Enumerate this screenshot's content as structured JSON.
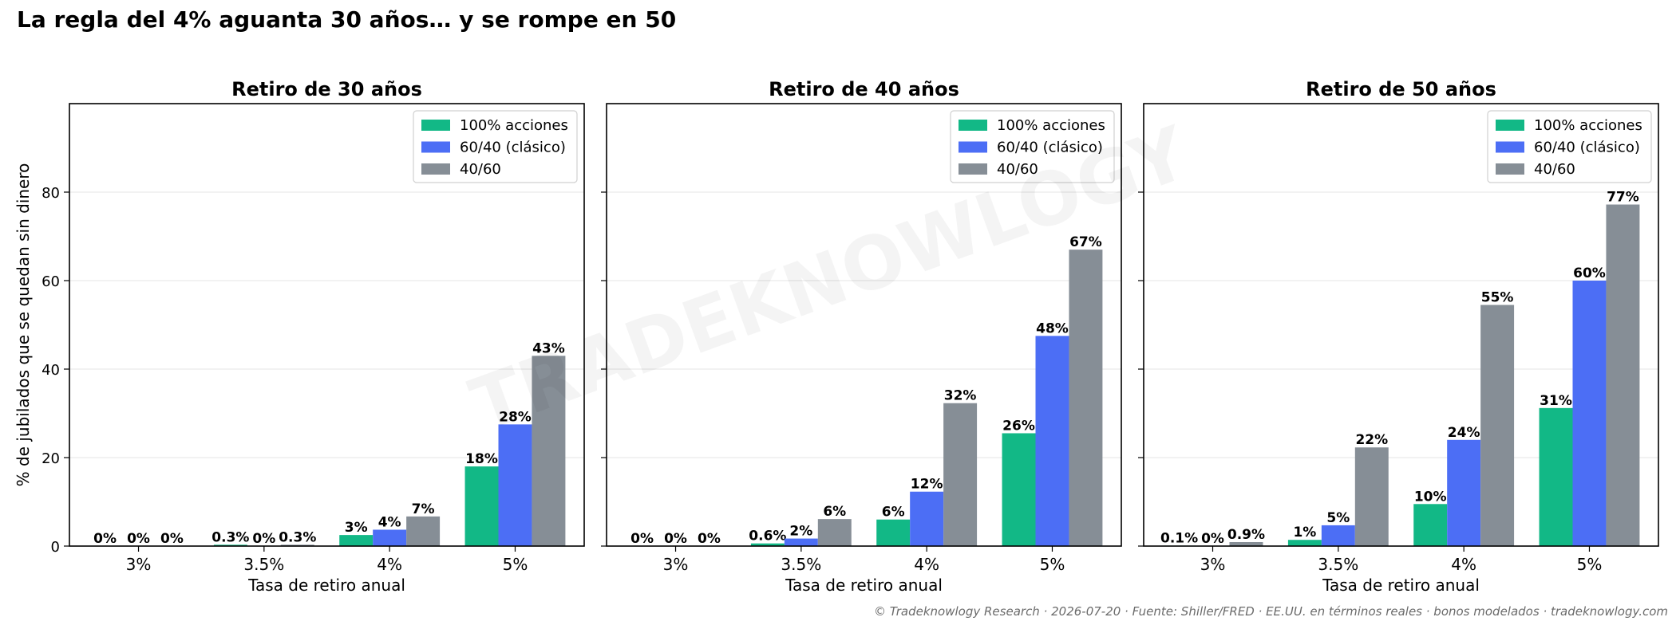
{
  "suptitle": "La regla del 4% aguanta 30 años… y se rompe en 50",
  "footer": "© Tradeknowlogy Research   ·   2026-07-20   ·   Fuente: Shiller/FRED · EE.UU. en términos reales · bonos modelados   ·   tradeknowlogy.com",
  "watermark": "TRADEKNOWLOGY",
  "colors": {
    "stocks": "#12b886",
    "classic": "#4c6ef5",
    "conservative": "#868e96",
    "grid": "#e9e9e9"
  },
  "chart_data": [
    {
      "type": "bar",
      "title": "Retiro de 30 años",
      "xlabel": "Tasa de retiro anual",
      "ylabel": "% de jubilados que se quedan sin dinero",
      "ylim": [
        0,
        100
      ],
      "yticks": [
        0,
        20,
        40,
        60,
        80
      ],
      "grid": "y",
      "legend": "top-right",
      "categories": [
        "3%",
        "3.5%",
        "4%",
        "5%"
      ],
      "series": [
        {
          "name": "100% acciones",
          "values": [
            0,
            0.3,
            2.5,
            18
          ],
          "labels": [
            "0%",
            "0.3%",
            "3%",
            "18%"
          ]
        },
        {
          "name": "60/40 (clásico)",
          "values": [
            0,
            0,
            3.7,
            27.5
          ],
          "labels": [
            "0%",
            "0%",
            "4%",
            "28%"
          ]
        },
        {
          "name": "40/60",
          "values": [
            0,
            0.3,
            6.7,
            43
          ],
          "labels": [
            "0%",
            "0.3%",
            "7%",
            "43%"
          ]
        }
      ]
    },
    {
      "type": "bar",
      "title": "Retiro de 40 años",
      "xlabel": "Tasa de retiro anual",
      "ylim": [
        0,
        100
      ],
      "yticks": [
        0,
        20,
        40,
        60,
        80
      ],
      "grid": "y",
      "legend": "top-right",
      "categories": [
        "3%",
        "3.5%",
        "4%",
        "5%"
      ],
      "series": [
        {
          "name": "100% acciones",
          "values": [
            0,
            0.6,
            6,
            25.5
          ],
          "labels": [
            "0%",
            "0.6%",
            "6%",
            "26%"
          ]
        },
        {
          "name": "60/40 (clásico)",
          "values": [
            0,
            1.7,
            12.3,
            47.5
          ],
          "labels": [
            "0%",
            "2%",
            "12%",
            "48%"
          ]
        },
        {
          "name": "40/60",
          "values": [
            0,
            6.1,
            32.3,
            67
          ],
          "labels": [
            "0%",
            "6%",
            "32%",
            "67%"
          ]
        }
      ]
    },
    {
      "type": "bar",
      "title": "Retiro de 50 años",
      "xlabel": "Tasa de retiro anual",
      "ylim": [
        0,
        100
      ],
      "yticks": [
        0,
        20,
        40,
        60,
        80
      ],
      "grid": "y",
      "legend": "top-right",
      "categories": [
        "3%",
        "3.5%",
        "4%",
        "5%"
      ],
      "series": [
        {
          "name": "100% acciones",
          "values": [
            0.1,
            1.4,
            9.5,
            31.2
          ],
          "labels": [
            "0.1%",
            "1%",
            "10%",
            "31%"
          ]
        },
        {
          "name": "60/40 (clásico)",
          "values": [
            0,
            4.7,
            24,
            60
          ],
          "labels": [
            "0%",
            "5%",
            "24%",
            "60%"
          ]
        },
        {
          "name": "40/60",
          "values": [
            0.9,
            22.3,
            54.5,
            77.2
          ],
          "labels": [
            "0.9%",
            "22%",
            "55%",
            "77%"
          ]
        }
      ]
    }
  ]
}
